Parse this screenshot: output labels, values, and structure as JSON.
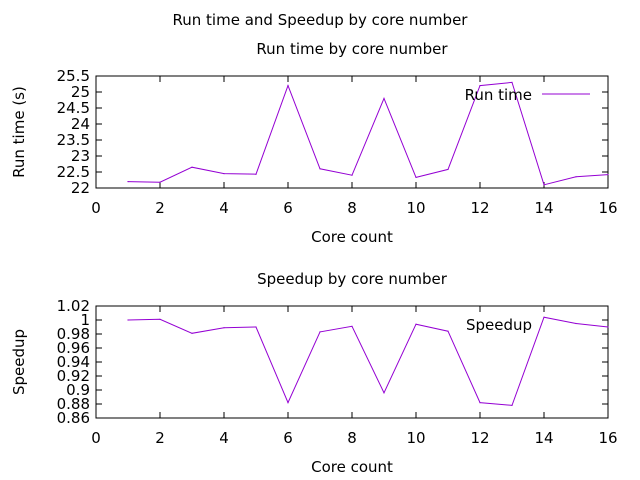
{
  "figure_title": "Run time and Speedup by core number",
  "colors": {
    "series": "#9400d3",
    "axis": "#000000"
  },
  "chart_data": [
    {
      "type": "line",
      "title": "Run time by core number",
      "xlabel": "Core count",
      "ylabel": "Run time (s)",
      "xlim": [
        0,
        16
      ],
      "ylim": [
        22,
        25.5
      ],
      "xticks": [
        0,
        2,
        4,
        6,
        8,
        10,
        12,
        14,
        16
      ],
      "yticks": [
        22,
        22.5,
        23,
        23.5,
        24,
        24.5,
        25,
        25.5
      ],
      "xtick_labels": [
        "0",
        "2",
        "4",
        "6",
        "8",
        "10",
        "12",
        "14",
        "16"
      ],
      "ytick_labels": [
        "22",
        "22.5",
        "23",
        "23.5",
        "24",
        "24.5",
        "25",
        "25.5"
      ],
      "grid": false,
      "legend": "top-right",
      "series": [
        {
          "name": "Run time",
          "x": [
            1,
            2,
            3,
            4,
            5,
            6,
            7,
            8,
            9,
            10,
            11,
            12,
            13,
            14,
            15,
            16
          ],
          "y": [
            22.2,
            22.18,
            22.65,
            22.45,
            22.43,
            25.2,
            22.6,
            22.4,
            24.8,
            22.33,
            22.58,
            25.2,
            25.3,
            22.1,
            22.35,
            22.42
          ]
        }
      ]
    },
    {
      "type": "line",
      "title": "Speedup by core number",
      "xlabel": "Core count",
      "ylabel": "Speedup",
      "xlim": [
        0,
        16
      ],
      "ylim": [
        0.86,
        1.02
      ],
      "xticks": [
        0,
        2,
        4,
        6,
        8,
        10,
        12,
        14,
        16
      ],
      "yticks": [
        0.86,
        0.88,
        0.9,
        0.92,
        0.94,
        0.96,
        0.98,
        1,
        1.02
      ],
      "xtick_labels": [
        "0",
        "2",
        "4",
        "6",
        "8",
        "10",
        "12",
        "14",
        "16"
      ],
      "ytick_labels": [
        "0.86",
        "0.88",
        "0.9",
        "0.92",
        "0.94",
        "0.96",
        "0.98",
        "1",
        "1.02"
      ],
      "grid": false,
      "legend": "top-right",
      "series": [
        {
          "name": "Speedup",
          "x": [
            1,
            2,
            3,
            4,
            5,
            6,
            7,
            8,
            9,
            10,
            11,
            12,
            13,
            14,
            15,
            16
          ],
          "y": [
            1.0,
            1.001,
            0.981,
            0.989,
            0.99,
            0.882,
            0.983,
            0.991,
            0.896,
            0.994,
            0.984,
            0.882,
            0.878,
            1.004,
            0.995,
            0.99
          ]
        }
      ]
    }
  ]
}
